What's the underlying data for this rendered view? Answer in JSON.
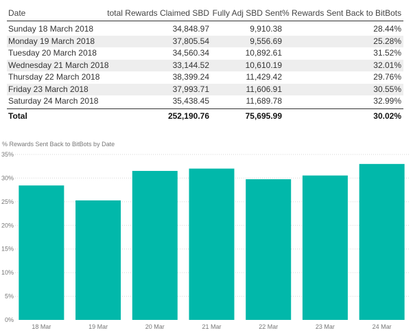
{
  "table": {
    "columns": [
      "Date",
      "total Rewards Claimed SBD",
      "Fully Adj SBD Sent",
      "% Rewards Sent Back to BitBots"
    ],
    "rows": [
      [
        "Sunday 18 March 2018",
        "34,848.97",
        "9,910.38",
        "28.44%"
      ],
      [
        "Monday 19 March 2018",
        "37,805.54",
        "9,556.69",
        "25.28%"
      ],
      [
        "Tuesday 20 March 2018",
        "34,560.34",
        "10,892.61",
        "31.52%"
      ],
      [
        "Wednesday 21 March 2018",
        "33,144.52",
        "10,610.19",
        "32.01%"
      ],
      [
        "Thursday 22 March 2018",
        "38,399.24",
        "11,429.42",
        "29.76%"
      ],
      [
        "Friday 23 March 2018",
        "37,993.71",
        "11,606.91",
        "30.55%"
      ],
      [
        "Saturday 24 March 2018",
        "35,438.45",
        "11,689.78",
        "32.99%"
      ]
    ],
    "total": [
      "Total",
      "252,190.76",
      "75,695.99",
      "30.02%"
    ]
  },
  "chart_data": {
    "type": "bar",
    "title": "% Rewards Sent Back to BitBots by Date",
    "categories": [
      "18 Mar",
      "19 Mar",
      "20 Mar",
      "21 Mar",
      "22 Mar",
      "23 Mar",
      "24 Mar"
    ],
    "values": [
      28.44,
      25.28,
      31.52,
      32.01,
      29.76,
      30.55,
      32.99
    ],
    "yticks": [
      0,
      5,
      10,
      15,
      20,
      25,
      30,
      35
    ],
    "ytick_labels": [
      "0%",
      "5%",
      "10%",
      "15%",
      "20%",
      "25%",
      "30%",
      "35%"
    ],
    "ylim": [
      0,
      35
    ],
    "xlabel": "",
    "ylabel": "",
    "grid": true,
    "color": "#01B8AA"
  }
}
